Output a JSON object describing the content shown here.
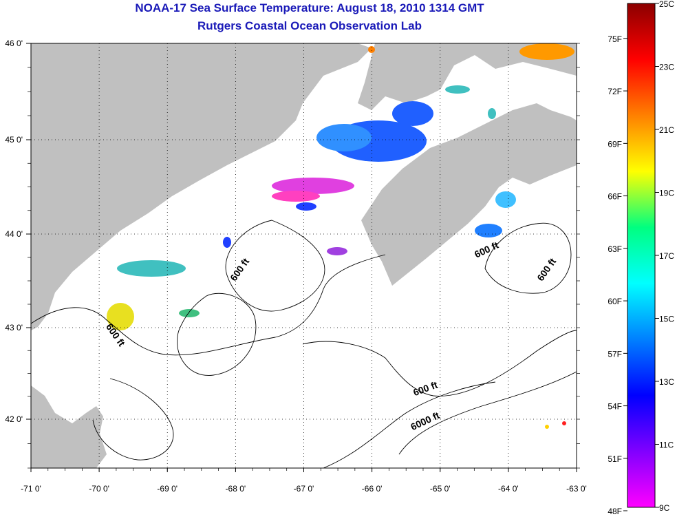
{
  "title": "NOAA-17 Sea Surface Temperature:  August 18, 2010 1314 GMT",
  "subtitle": "Rutgers Coastal Ocean Observation Lab",
  "lon_ticks": [
    {
      "value": -71,
      "label": "-71 0'"
    },
    {
      "value": -70,
      "label": "-70 0'"
    },
    {
      "value": -69,
      "label": "-69 0'"
    },
    {
      "value": -68,
      "label": "-68 0'"
    },
    {
      "value": -67,
      "label": "-67 0'"
    },
    {
      "value": -66,
      "label": "-66 0'"
    },
    {
      "value": -65,
      "label": "-65 0'"
    },
    {
      "value": -64,
      "label": "-64 0'"
    },
    {
      "value": -63,
      "label": "-63 0'"
    }
  ],
  "lat_ticks": [
    {
      "value": 46,
      "label": "46 0'"
    },
    {
      "value": 45,
      "label": "45 0'"
    },
    {
      "value": 44,
      "label": "44 0'"
    },
    {
      "value": 43,
      "label": "43 0'"
    },
    {
      "value": 42,
      "label": "42 0'"
    }
  ],
  "lon_range": [
    -71,
    -63
  ],
  "lat_range": [
    41.5,
    46
  ],
  "contour_labels": [
    {
      "text": "600 ft",
      "lon": -67.9,
      "lat": 43.6,
      "rotate": -55
    },
    {
      "text": "600 ft",
      "lon": -69.8,
      "lat": 42.9,
      "rotate": 55
    },
    {
      "text": "600 ft",
      "lon": -64.3,
      "lat": 43.8,
      "rotate": -25
    },
    {
      "text": "600 ft",
      "lon": -63.4,
      "lat": 43.6,
      "rotate": -55
    },
    {
      "text": "600 ft",
      "lon": -65.2,
      "lat": 42.3,
      "rotate": -20
    },
    {
      "text": "6000 ft",
      "lon": -65.2,
      "lat": 41.95,
      "rotate": -25
    }
  ],
  "colorbar": {
    "fahrenheit_labels": [
      "75F",
      "72F",
      "69F",
      "66F",
      "63F",
      "60F",
      "57F",
      "54F",
      "51F",
      "48F"
    ],
    "celsius_labels": [
      "25C",
      "23C",
      "21C",
      "19C",
      "17C",
      "15C",
      "13C",
      "11C",
      "9C"
    ],
    "stops": [
      "#8b0000",
      "#ff0000",
      "#ff8000",
      "#ffff00",
      "#00ff80",
      "#00ffff",
      "#0080ff",
      "#0000ff",
      "#8000ff",
      "#ff00ff"
    ],
    "range_c": [
      9,
      25
    ]
  },
  "colors": {
    "land": "#c0c0c0",
    "water": "#ffffff",
    "grid": "#000000",
    "title": "#1a1ab8"
  }
}
